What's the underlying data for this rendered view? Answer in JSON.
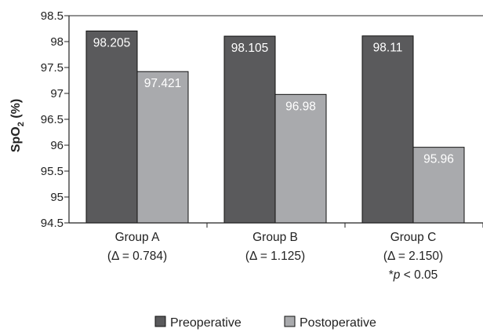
{
  "chart_data": {
    "type": "bar",
    "ylabel": "SpO",
    "ylabel_sub": "2",
    "ylabel_suffix": " (%)",
    "ylim": [
      94.5,
      98.5
    ],
    "yticks": [
      {
        "value": 94.5,
        "label": "94.5"
      },
      {
        "value": 95,
        "label": "95"
      },
      {
        "value": 95.5,
        "label": "95.5"
      },
      {
        "value": 96,
        "label": "96"
      },
      {
        "value": 96.5,
        "label": "96.5"
      },
      {
        "value": 97,
        "label": "97"
      },
      {
        "value": 97.5,
        "label": "97.5"
      },
      {
        "value": 98,
        "label": "98"
      },
      {
        "value": 98.5,
        "label": "98.5"
      }
    ],
    "grid": false,
    "legend_position": "bottom",
    "categories": [
      {
        "name": "Group A",
        "note": "(Δ = 0.784)",
        "sig_prefix": "",
        "sig_p": "",
        "sig_suffix": ""
      },
      {
        "name": "Group B",
        "note": "(Δ = 1.125)",
        "sig_prefix": "",
        "sig_p": "",
        "sig_suffix": ""
      },
      {
        "name": "Group C",
        "note": "(Δ = 2.150)",
        "sig_prefix": "*",
        "sig_p": "p",
        "sig_suffix": " < 0.05"
      }
    ],
    "series": [
      {
        "name": "Preoperative",
        "color": "#5a5a5c",
        "values": [
          98.205,
          98.105,
          98.11
        ],
        "labels": [
          "98.205",
          "98.105",
          "98.11"
        ]
      },
      {
        "name": "Postoperative",
        "color": "#a9aaad",
        "values": [
          97.421,
          96.98,
          95.96
        ],
        "labels": [
          "97.421",
          "96.98",
          "95.96"
        ]
      }
    ]
  }
}
